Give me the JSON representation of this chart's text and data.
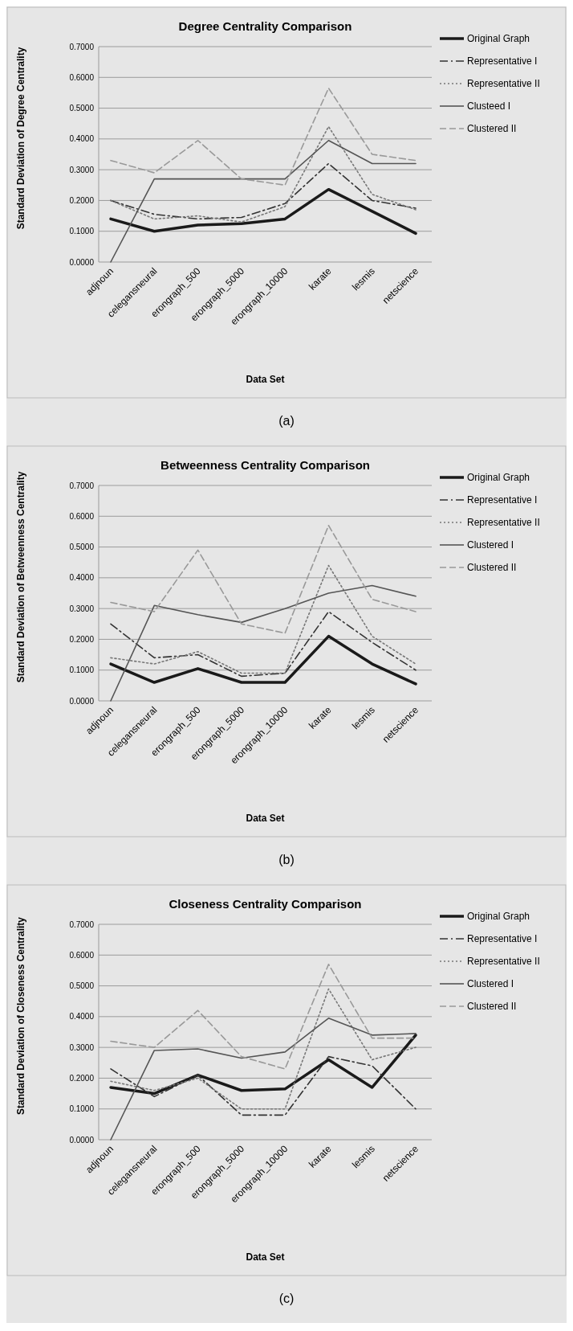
{
  "chart_data": [
    {
      "type": "line",
      "title": "Degree Centrality Comparison",
      "xlabel": "Data Set",
      "ylabel": "Standard Deviation of Degree Centrality",
      "annotations": [
        "(a)"
      ],
      "categories": [
        "adjnoun",
        "celegansneural",
        "erongraph_500",
        "erongraph_5000",
        "erongraph_10000",
        "karate",
        "lesmis",
        "netscience"
      ],
      "ylim": [
        0,
        0.7
      ],
      "yticks": [
        {
          "value": 0,
          "label": "0.0000"
        },
        {
          "value": 0.1,
          "label": "0.1000"
        },
        {
          "value": 0.2,
          "label": "0.2000"
        },
        {
          "value": 0.3,
          "label": "0.3000"
        },
        {
          "value": 0.4,
          "label": "0.4000"
        },
        {
          "value": 0.5,
          "label": "0.5000"
        },
        {
          "value": 0.6,
          "label": "0.6000"
        },
        {
          "value": 0.7,
          "label": "0.7000"
        }
      ],
      "grid": "y",
      "legend": "right",
      "marker": "none",
      "series": [
        {
          "name": "Original Graph",
          "color": "#1a1a1a",
          "line_style": "solid",
          "values": [
            0.14,
            0.1,
            0.12,
            0.125,
            0.14,
            0.236,
            0.165,
            0.093
          ]
        },
        {
          "name": "Representative I",
          "color": "#333333",
          "line_style": "dashdot",
          "values": [
            0.2,
            0.155,
            0.14,
            0.145,
            0.19,
            0.32,
            0.2,
            0.175
          ]
        },
        {
          "name": "Representative II",
          "color": "#777777",
          "line_style": "dotted",
          "values": [
            0.2,
            0.14,
            0.15,
            0.13,
            0.18,
            0.44,
            0.22,
            0.17
          ]
        },
        {
          "name": "Clusteed I",
          "color": "#555555",
          "line_style": "solid",
          "values": [
            0,
            0.27,
            0.27,
            0.27,
            0.27,
            0.395,
            0.32,
            0.32
          ]
        },
        {
          "name": "Clustered II",
          "color": "#999999",
          "line_style": "dashed",
          "values": [
            0.33,
            0.29,
            0.395,
            0.27,
            0.25,
            0.565,
            0.35,
            0.33
          ]
        }
      ]
    },
    {
      "type": "line",
      "title": "Betweenness Centrality Comparison",
      "xlabel": "Data Set",
      "ylabel": "Standard Deviation of Betweenness Centrality",
      "annotations": [
        "(b)"
      ],
      "categories": [
        "adjnoun",
        "celegansneural",
        "erongraph_500",
        "erongraph_5000",
        "erongraph_10000",
        "karate",
        "lesmis",
        "netscience"
      ],
      "ylim": [
        0,
        0.7
      ],
      "yticks": [
        {
          "value": 0,
          "label": "0.0000"
        },
        {
          "value": 0.1,
          "label": "0.1000"
        },
        {
          "value": 0.2,
          "label": "0.2000"
        },
        {
          "value": 0.3,
          "label": "0.3000"
        },
        {
          "value": 0.4,
          "label": "0.4000"
        },
        {
          "value": 0.5,
          "label": "0.5000"
        },
        {
          "value": 0.6,
          "label": "0.6000"
        },
        {
          "value": 0.7,
          "label": "0.7000"
        }
      ],
      "grid": "y",
      "legend": "right",
      "marker": "none",
      "series": [
        {
          "name": "Original Graph",
          "color": "#1a1a1a",
          "line_style": "solid",
          "values": [
            0.12,
            0.06,
            0.105,
            0.06,
            0.06,
            0.21,
            0.12,
            0.055
          ]
        },
        {
          "name": "Representative I",
          "color": "#333333",
          "line_style": "dashdot",
          "values": [
            0.25,
            0.14,
            0.15,
            0.08,
            0.09,
            0.29,
            0.19,
            0.1
          ]
        },
        {
          "name": "Representative II",
          "color": "#777777",
          "line_style": "dotted",
          "values": [
            0.14,
            0.12,
            0.16,
            0.09,
            0.09,
            0.44,
            0.21,
            0.12
          ]
        },
        {
          "name": "Clustered I",
          "color": "#555555",
          "line_style": "solid",
          "values": [
            0,
            0.31,
            0.28,
            0.255,
            0.3,
            0.35,
            0.375,
            0.34
          ]
        },
        {
          "name": "Clustered II",
          "color": "#999999",
          "line_style": "dashed",
          "values": [
            0.32,
            0.29,
            0.49,
            0.25,
            0.22,
            0.57,
            0.33,
            0.29
          ]
        }
      ]
    },
    {
      "type": "line",
      "title": "Closeness Centrality Comparison",
      "xlabel": "Data Set",
      "ylabel": "Standard Deviation of Closeness Centrality",
      "annotations": [
        "(c)"
      ],
      "categories": [
        "adjnoun",
        "celegansneural",
        "erongraph_500",
        "erongraph_5000",
        "erongraph_10000",
        "karate",
        "lesmis",
        "netscience"
      ],
      "ylim": [
        0,
        0.7
      ],
      "yticks": [
        {
          "value": 0,
          "label": "0.0000"
        },
        {
          "value": 0.1,
          "label": "0.1000"
        },
        {
          "value": 0.2,
          "label": "0.2000"
        },
        {
          "value": 0.3,
          "label": "0.3000"
        },
        {
          "value": 0.4,
          "label": "0.4000"
        },
        {
          "value": 0.5,
          "label": "0.5000"
        },
        {
          "value": 0.6,
          "label": "0.6000"
        },
        {
          "value": 0.7,
          "label": "0.7000"
        }
      ],
      "grid": "y",
      "legend": "right",
      "marker": "none",
      "series": [
        {
          "name": "Original Graph",
          "color": "#1a1a1a",
          "line_style": "solid",
          "values": [
            0.17,
            0.15,
            0.21,
            0.16,
            0.165,
            0.26,
            0.17,
            0.34
          ]
        },
        {
          "name": "Representative I",
          "color": "#333333",
          "line_style": "dashdot",
          "values": [
            0.23,
            0.14,
            0.21,
            0.08,
            0.08,
            0.27,
            0.24,
            0.1
          ]
        },
        {
          "name": "Representative II",
          "color": "#777777",
          "line_style": "dotted",
          "values": [
            0.19,
            0.16,
            0.2,
            0.1,
            0.1,
            0.49,
            0.26,
            0.3
          ]
        },
        {
          "name": "Clustered I",
          "color": "#555555",
          "line_style": "solid",
          "values": [
            0,
            0.29,
            0.295,
            0.265,
            0.285,
            0.395,
            0.34,
            0.345
          ]
        },
        {
          "name": "Clustered II",
          "color": "#999999",
          "line_style": "dashed",
          "values": [
            0.32,
            0.3,
            0.42,
            0.27,
            0.23,
            0.57,
            0.33,
            0.33
          ]
        }
      ]
    }
  ]
}
